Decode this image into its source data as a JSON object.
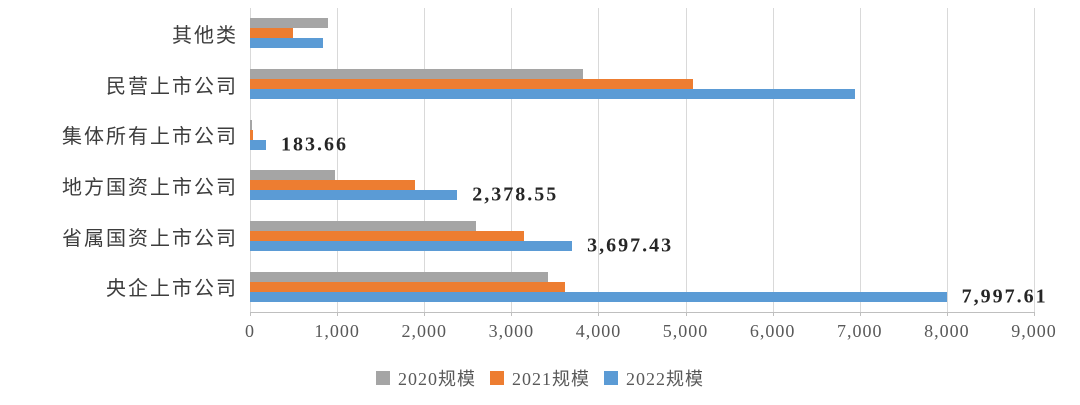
{
  "chart_data": {
    "type": "bar",
    "orientation": "horizontal",
    "title": "",
    "categories": [
      "其他类",
      "民营上市公司",
      "集体所有上市公司",
      "地方国资上市公司",
      "省属国资上市公司",
      "央企上市公司"
    ],
    "series": [
      {
        "name": "2020规模",
        "color": "#A5A5A5",
        "values": [
          900,
          3820,
          20,
          975,
          2600,
          3420
        ],
        "data_labels": [
          "",
          "",
          "",
          "",
          "",
          ""
        ]
      },
      {
        "name": "2021规模",
        "color": "#ED7D31",
        "values": [
          490,
          5080,
          30,
          1890,
          3150,
          3620
        ],
        "data_labels": [
          "",
          "",
          "",
          "",
          "",
          ""
        ]
      },
      {
        "name": "2022规模",
        "color": "#5B9BD5",
        "values": [
          840,
          6950,
          183.66,
          2378.55,
          3697.43,
          7997.61
        ],
        "data_labels": [
          "",
          "",
          "183.66",
          "2,378.55",
          "3,697.43",
          "7,997.61"
        ]
      }
    ],
    "xlim": [
      0,
      9000
    ],
    "x_ticks": [
      "0",
      "1,000",
      "2,000",
      "3,000",
      "4,000",
      "5,000",
      "6,000",
      "7,000",
      "8,000",
      "9,000"
    ],
    "grid": "vertical",
    "legend_position": "bottom"
  },
  "colors": {
    "background": "#FFFFFF",
    "gridline": "#D9D9D9",
    "axis_line": "#BFBFBF",
    "axis_text": "#595959",
    "category_text": "#3D3D3D",
    "data_label_text": "#262626",
    "legend_text": "#595959"
  }
}
